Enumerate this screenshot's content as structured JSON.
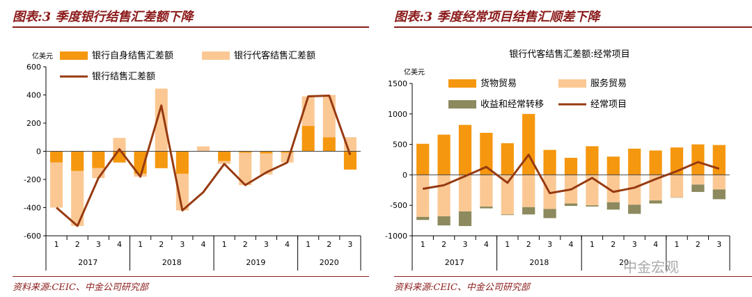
{
  "left": {
    "title": "图表:3 季度银行结售汇差额下降",
    "source": "资料来源:CEIC、中金公司研究部",
    "colors": {
      "self": "#F5970F",
      "agent": "#FBC894",
      "line": "#963A10"
    },
    "chart_data": {
      "type": "bar",
      "unit_label": "亿美元",
      "ylim": [
        -600,
        600
      ],
      "yticks": [
        -600,
        -400,
        -200,
        0,
        200,
        400,
        600
      ],
      "categories": [
        "1",
        "2",
        "3",
        "4",
        "1",
        "2",
        "3",
        "4",
        "1",
        "2",
        "3",
        "4",
        "1",
        "2",
        "3"
      ],
      "year_groups": [
        {
          "label": "2017",
          "count": 4
        },
        {
          "label": "2018",
          "count": 4
        },
        {
          "label": "2019",
          "count": 4
        },
        {
          "label": "2020",
          "count": 3
        }
      ],
      "series": [
        {
          "name": "银行自身结售汇差额",
          "type": "bar",
          "values": [
            -80,
            -140,
            -120,
            -80,
            -160,
            -120,
            -160,
            0,
            -70,
            -10,
            -15,
            -10,
            180,
            100,
            -130
          ]
        },
        {
          "name": "银行代客结售汇差额",
          "type": "bar",
          "values": [
            -320,
            -390,
            -70,
            95,
            -20,
            445,
            -260,
            35,
            -20,
            -230,
            -150,
            -70,
            210,
            300,
            100
          ]
        },
        {
          "name": "银行结售汇差额",
          "type": "line",
          "values": [
            -400,
            -530,
            -190,
            15,
            -180,
            325,
            -420,
            -290,
            -90,
            -240,
            -150,
            -80,
            390,
            395,
            -25
          ]
        }
      ]
    }
  },
  "right": {
    "title": "图表:3 季度经常项目结售汇顺差下降",
    "source": "资料来源:CEIC、中金公司研究部",
    "subtitle": "银行代客结售汇差额:经常项目",
    "colors": {
      "goods": "#F5970F",
      "services": "#FBC894",
      "income": "#8C8A5E",
      "line": "#963A10"
    },
    "watermark": "中金宏观",
    "chart_data": {
      "type": "bar",
      "unit_label": "亿美元",
      "ylim": [
        -1000,
        1500
      ],
      "yticks": [
        -1000,
        -500,
        0,
        500,
        1000,
        1500
      ],
      "categories": [
        "1",
        "2",
        "3",
        "4",
        "1",
        "2",
        "3",
        "4",
        "1",
        "2",
        "3",
        "4",
        "1",
        "2",
        "3"
      ],
      "year_groups": [
        {
          "label": "2017",
          "count": 4
        },
        {
          "label": "2018",
          "count": 4
        },
        {
          "label": "20",
          "count": 4
        },
        {
          "label": "",
          "count": 3
        }
      ],
      "series": [
        {
          "name": "货物贸易",
          "type": "bar",
          "values": [
            510,
            660,
            820,
            690,
            520,
            1000,
            410,
            280,
            470,
            300,
            430,
            400,
            450,
            500,
            490
          ]
        },
        {
          "name": "服务贸易",
          "type": "bar",
          "values": [
            -690,
            -680,
            -600,
            -520,
            -650,
            -530,
            -560,
            -470,
            -500,
            -450,
            -490,
            -420,
            -370,
            -160,
            -240
          ]
        },
        {
          "name": "收益和经常转移",
          "type": "bar",
          "values": [
            -50,
            -150,
            -240,
            -30,
            -10,
            -120,
            -150,
            -40,
            -20,
            -120,
            -150,
            -50,
            -5,
            -120,
            -160
          ]
        },
        {
          "name": "经常项目",
          "type": "line",
          "values": [
            -230,
            -170,
            -20,
            130,
            -130,
            330,
            -300,
            -240,
            -50,
            -280,
            -210,
            -70,
            60,
            210,
            100
          ]
        }
      ]
    }
  }
}
